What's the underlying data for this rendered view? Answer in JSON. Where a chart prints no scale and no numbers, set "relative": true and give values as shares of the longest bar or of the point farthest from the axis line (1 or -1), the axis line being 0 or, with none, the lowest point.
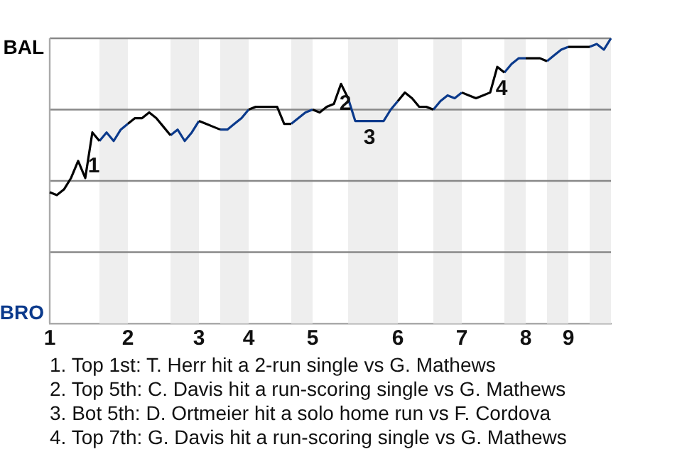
{
  "chart_data": {
    "type": "line",
    "relative": true,
    "grid": "y",
    "legend": false,
    "marker": "none",
    "line_style": "solid",
    "categories": [
      "1",
      null,
      null,
      null,
      null,
      null,
      null,
      null,
      null,
      null,
      null,
      "2",
      null,
      null,
      null,
      null,
      null,
      null,
      null,
      null,
      null,
      "3",
      null,
      null,
      null,
      null,
      null,
      null,
      "4",
      null,
      null,
      null,
      null,
      null,
      null,
      null,
      null,
      "5",
      null,
      null,
      null,
      null,
      null,
      null,
      null,
      null,
      null,
      null,
      null,
      "6",
      null,
      null,
      null,
      null,
      null,
      null,
      null,
      null,
      "7",
      null,
      null,
      null,
      null,
      null,
      null,
      null,
      null,
      "8",
      null,
      null,
      null,
      null,
      null,
      "9",
      null,
      null,
      null,
      null,
      null,
      null
    ],
    "series": [
      {
        "name": "BAL",
        "color": "#000000",
        "values": [
          0.46,
          0.45,
          0.47,
          0.51,
          0.57,
          0.51,
          0.67,
          0.64,
          null,
          null,
          null,
          0.7,
          0.72,
          0.72,
          0.74,
          0.72,
          0.69,
          0.66,
          null,
          null,
          null,
          0.71,
          0.7,
          0.69,
          0.68,
          null,
          null,
          null,
          0.75,
          0.76,
          0.76,
          0.76,
          0.76,
          0.7,
          0.7,
          null,
          null,
          0.75,
          0.74,
          0.76,
          0.77,
          0.84,
          0.79,
          null,
          null,
          null,
          null,
          null,
          null,
          0.78,
          0.81,
          0.79,
          0.76,
          0.76,
          0.75,
          null,
          null,
          null,
          0.81,
          0.8,
          0.79,
          0.8,
          0.81,
          0.9,
          0.88,
          null,
          null,
          0.93,
          0.93,
          0.93,
          0.92,
          null,
          null,
          0.97,
          0.97,
          0.97,
          0.97,
          null,
          null,
          null
        ]
      },
      {
        "name": "BRO",
        "color": "#0b3a8c",
        "values": [
          null,
          null,
          null,
          null,
          null,
          null,
          null,
          0.64,
          0.67,
          0.64,
          0.68,
          0.7,
          null,
          null,
          null,
          null,
          null,
          0.66,
          0.68,
          0.64,
          0.67,
          0.71,
          null,
          null,
          0.68,
          0.68,
          0.7,
          0.72,
          0.75,
          null,
          null,
          null,
          null,
          null,
          0.7,
          0.72,
          0.74,
          0.75,
          null,
          null,
          null,
          null,
          0.79,
          0.71,
          0.71,
          0.71,
          0.71,
          0.71,
          0.75,
          0.78,
          null,
          null,
          null,
          null,
          0.75,
          0.78,
          0.8,
          0.79,
          0.81,
          null,
          null,
          null,
          null,
          null,
          0.88,
          0.91,
          0.93,
          0.93,
          null,
          null,
          0.92,
          0.94,
          0.96,
          0.97,
          null,
          null,
          0.97,
          0.98,
          0.96,
          1.0
        ]
      }
    ],
    "annotations": [
      {
        "text": "1",
        "y": 0.55
      },
      {
        "text": "2",
        "y": 0.77
      },
      {
        "text": "3",
        "y": 0.71
      },
      {
        "text": "4",
        "y": 0.9
      },
      "1. Top 1st: T. Herr hit a 2-run single vs G. Mathews",
      "2. Top 5th: C. Davis hit a run-scoring single vs G. Mathews",
      "3. Bot 5th: D. Ortmeier hit a solo home run vs F. Cordova",
      "4. Top 7th: G. Davis hit a run-scoring single vs G. Mathews"
    ]
  }
}
